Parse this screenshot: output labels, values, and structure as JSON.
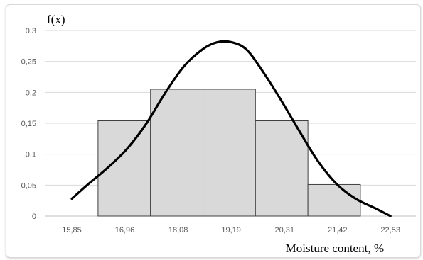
{
  "chart_data": {
    "type": "bar",
    "subtype": "histogram with density curve",
    "title": "",
    "ylabel": "f(x)",
    "xlabel": "Moisture content, %",
    "ylim": [
      0,
      0.3
    ],
    "y_ticks": [
      "0",
      "0,05",
      "0,1",
      "0,15",
      "0,2",
      "0,25",
      "0,3"
    ],
    "y_tick_values": [
      0,
      0.05,
      0.1,
      0.15,
      0.2,
      0.25,
      0.3
    ],
    "x_ticks": [
      "15,85",
      "16,96",
      "18,08",
      "19,19",
      "20,31",
      "21,42",
      "22,53"
    ],
    "x_tick_values": [
      15.85,
      16.96,
      18.08,
      19.19,
      20.31,
      21.42,
      22.53
    ],
    "grid": true,
    "bars": [
      {
        "x_start": 16.4,
        "x_end": 17.5,
        "value": 0.154
      },
      {
        "x_start": 17.5,
        "x_end": 18.6,
        "value": 0.205
      },
      {
        "x_start": 18.6,
        "x_end": 19.7,
        "value": 0.205
      },
      {
        "x_start": 19.7,
        "x_end": 20.8,
        "value": 0.154
      },
      {
        "x_start": 20.8,
        "x_end": 21.9,
        "value": 0.051
      }
    ],
    "curve": {
      "x": [
        15.85,
        16.2,
        16.6,
        17.0,
        17.4,
        17.8,
        18.2,
        18.6,
        18.9,
        19.2,
        19.5,
        19.8,
        20.2,
        20.6,
        21.0,
        21.4,
        21.8,
        22.2,
        22.53
      ],
      "y": [
        0.028,
        0.052,
        0.078,
        0.108,
        0.148,
        0.198,
        0.242,
        0.27,
        0.281,
        0.281,
        0.27,
        0.24,
        0.192,
        0.14,
        0.09,
        0.052,
        0.028,
        0.013,
        0.0
      ]
    },
    "colors": {
      "bar_fill": "#d9d9d9",
      "bar_stroke": "#404040",
      "curve": "#000000",
      "grid": "#d9d9d9",
      "axis": "#bfbfbf"
    }
  }
}
